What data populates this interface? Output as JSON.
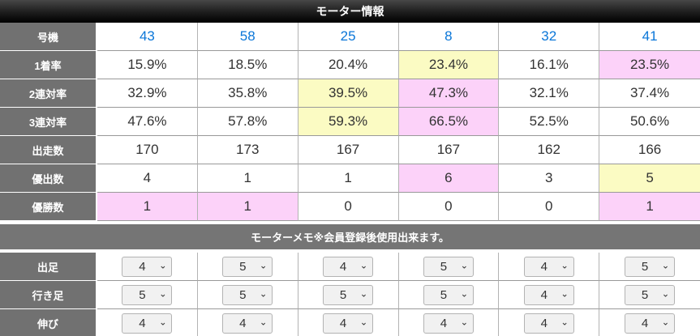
{
  "header": {
    "title": "モーター情報"
  },
  "colors": {
    "highlight_yellow": "#fbfbc3",
    "highlight_pink": "#fcd2f9",
    "machine_blue": "#0a76d8"
  },
  "table": {
    "machine_row": {
      "label": "号機",
      "numbers": [
        "43",
        "58",
        "25",
        "8",
        "32",
        "41"
      ]
    },
    "stat_rows": [
      {
        "label": "1着率",
        "values": [
          "15.9%",
          "18.5%",
          "20.4%",
          "23.4%",
          "16.1%",
          "23.5%"
        ],
        "highlights": [
          "",
          "",
          "",
          "yellow",
          "",
          "pink"
        ]
      },
      {
        "label": "2連対率",
        "values": [
          "32.9%",
          "35.8%",
          "39.5%",
          "47.3%",
          "32.1%",
          "37.4%"
        ],
        "highlights": [
          "",
          "",
          "yellow",
          "pink",
          "",
          ""
        ]
      },
      {
        "label": "3連対率",
        "values": [
          "47.6%",
          "57.8%",
          "59.3%",
          "66.5%",
          "52.5%",
          "50.6%"
        ],
        "highlights": [
          "",
          "",
          "yellow",
          "pink",
          "",
          ""
        ]
      },
      {
        "label": "出走数",
        "values": [
          "170",
          "173",
          "167",
          "167",
          "162",
          "166"
        ],
        "highlights": [
          "",
          "",
          "",
          "",
          "",
          ""
        ]
      },
      {
        "label": "優出数",
        "values": [
          "4",
          "1",
          "1",
          "6",
          "3",
          "5"
        ],
        "highlights": [
          "",
          "",
          "",
          "pink",
          "",
          "yellow"
        ]
      },
      {
        "label": "優勝数",
        "values": [
          "1",
          "1",
          "0",
          "0",
          "0",
          "1"
        ],
        "highlights": [
          "pink",
          "pink",
          "",
          "",
          "",
          "pink"
        ]
      }
    ],
    "memo_bar": {
      "text": "モーターメモ※会員登録後使用出来ます。"
    },
    "select_rows": [
      {
        "label": "出足",
        "values": [
          "4",
          "5",
          "4",
          "5",
          "4",
          "5"
        ]
      },
      {
        "label": "行き足",
        "values": [
          "5",
          "5",
          "5",
          "5",
          "4",
          "5"
        ]
      },
      {
        "label": "伸び",
        "values": [
          "4",
          "4",
          "4",
          "4",
          "4",
          "4"
        ]
      }
    ]
  }
}
